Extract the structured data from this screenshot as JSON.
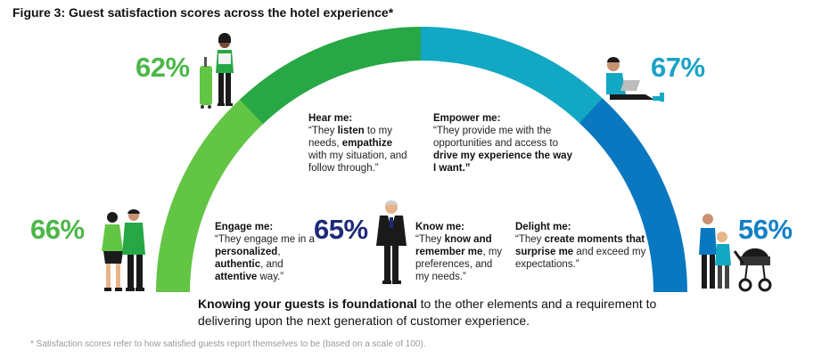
{
  "title": "Figure 3: Guest satisfaction scores across the hotel experience*",
  "colors": {
    "light_green": "#62C544",
    "dark_green": "#27A745",
    "teal": "#12A8C4",
    "blue": "#0A78C0",
    "navy": "#1E2A78",
    "green_text": "#4CB749",
    "teal_text": "#1AA3C6",
    "blue_text": "#1380C8"
  },
  "stages": [
    {
      "id": "engage",
      "score": "66%",
      "heading": "Engage me:",
      "parts": [
        {
          "t": "“They engage me in a ",
          "b": false
        },
        {
          "t": "personalized",
          "b": true
        },
        {
          "t": ", ",
          "b": false
        },
        {
          "t": "authentic",
          "b": true
        },
        {
          "t": ", and ",
          "b": false
        },
        {
          "t": "attentive",
          "b": true
        },
        {
          "t": " way.”",
          "b": false
        }
      ]
    },
    {
      "id": "hear",
      "score": "62%",
      "heading": "Hear me:",
      "parts": [
        {
          "t": "“They ",
          "b": false
        },
        {
          "t": "listen",
          "b": true
        },
        {
          "t": " to my needs, ",
          "b": false
        },
        {
          "t": "empathize",
          "b": true
        },
        {
          "t": " with my situation, and follow through.”",
          "b": false
        }
      ]
    },
    {
      "id": "know",
      "score": "65%",
      "heading": "Know me:",
      "parts": [
        {
          "t": "“They ",
          "b": false
        },
        {
          "t": "know and remember me",
          "b": true
        },
        {
          "t": ", my preferences, and my needs.”",
          "b": false
        }
      ]
    },
    {
      "id": "empower",
      "score": "67%",
      "heading": "Empower me:",
      "parts": [
        {
          "t": "“They provide me with the opportunities and access to ",
          "b": false
        },
        {
          "t": "drive my experience the way I want.”",
          "b": true
        }
      ]
    },
    {
      "id": "delight",
      "score": "56%",
      "heading": "Delight me:",
      "parts": [
        {
          "t": "“They ",
          "b": false
        },
        {
          "t": "create moments that surprise me",
          "b": true
        },
        {
          "t": " and exceed my expectations.”",
          "b": false
        }
      ]
    }
  ],
  "tagline": {
    "bold": "Knowing your guests is foundational",
    "rest": " to the other elements and a requirement to delivering upon the next generation of customer experience."
  },
  "footnote": "* Satisfaction scores refer to how satisfied guests report themselves to be (based on a scale of 100)."
}
